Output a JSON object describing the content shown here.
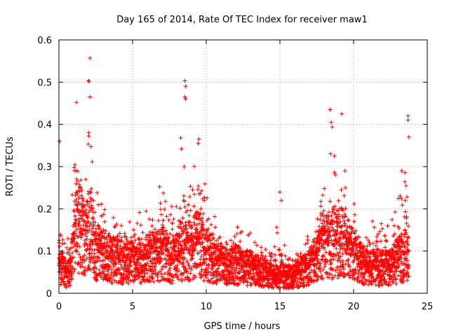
{
  "chart_data": {
    "type": "scatter",
    "title": "Day 165 of 2014, Rate Of TEC Index for receiver maw1",
    "xlabel": "GPS time / hours",
    "ylabel": "ROTI / TECUs",
    "xlim": [
      0,
      25
    ],
    "ylim": [
      0,
      0.6
    ],
    "xticks": [
      0,
      5,
      10,
      15,
      20,
      25
    ],
    "xtick_labels": [
      "0",
      "5",
      "10",
      "15",
      "20",
      "25"
    ],
    "yticks": [
      0,
      0.1,
      0.2,
      0.3,
      0.4,
      0.5,
      0.6
    ],
    "ytick_labels": [
      "0",
      "0.1",
      "0.2",
      "0.3",
      "0.4",
      "0.5",
      "0.6"
    ],
    "grid": true,
    "legend": "none",
    "marker": "plus",
    "color": "#ff0000",
    "series": [
      {
        "profile": [
          [
            0.0,
            0.05,
            0.2
          ],
          [
            0.25,
            0.06,
            0.22
          ],
          [
            0.5,
            0.04,
            0.17
          ],
          [
            0.75,
            0.05,
            0.12
          ],
          [
            1.0,
            0.12,
            0.34
          ],
          [
            1.25,
            0.17,
            0.45
          ],
          [
            1.5,
            0.14,
            0.4
          ],
          [
            1.75,
            0.12,
            0.33
          ],
          [
            2.0,
            0.15,
            0.55
          ],
          [
            2.25,
            0.12,
            0.38
          ],
          [
            2.5,
            0.1,
            0.25
          ],
          [
            3.0,
            0.09,
            0.24
          ],
          [
            3.5,
            0.08,
            0.2
          ],
          [
            4.0,
            0.08,
            0.19
          ],
          [
            4.5,
            0.07,
            0.19
          ],
          [
            5.0,
            0.08,
            0.2
          ],
          [
            5.5,
            0.08,
            0.2
          ],
          [
            6.0,
            0.08,
            0.2
          ],
          [
            6.5,
            0.09,
            0.21
          ],
          [
            7.0,
            0.09,
            0.28
          ],
          [
            7.5,
            0.08,
            0.22
          ],
          [
            8.0,
            0.08,
            0.25
          ],
          [
            8.5,
            0.1,
            0.5
          ],
          [
            8.75,
            0.1,
            0.3
          ],
          [
            9.0,
            0.1,
            0.3
          ],
          [
            9.5,
            0.12,
            0.36
          ],
          [
            10.0,
            0.09,
            0.28
          ],
          [
            10.5,
            0.07,
            0.2
          ],
          [
            11.0,
            0.07,
            0.18
          ],
          [
            11.5,
            0.06,
            0.18
          ],
          [
            12.0,
            0.07,
            0.2
          ],
          [
            12.5,
            0.06,
            0.17
          ],
          [
            13.0,
            0.06,
            0.15
          ],
          [
            13.5,
            0.05,
            0.15
          ],
          [
            14.0,
            0.05,
            0.14
          ],
          [
            14.5,
            0.04,
            0.12
          ],
          [
            15.0,
            0.04,
            0.24
          ],
          [
            15.5,
            0.04,
            0.1
          ],
          [
            16.0,
            0.04,
            0.1
          ],
          [
            16.5,
            0.05,
            0.14
          ],
          [
            17.0,
            0.06,
            0.15
          ],
          [
            17.5,
            0.09,
            0.2
          ],
          [
            18.0,
            0.12,
            0.34
          ],
          [
            18.5,
            0.11,
            0.43
          ],
          [
            19.0,
            0.12,
            0.35
          ],
          [
            19.25,
            0.12,
            0.42
          ],
          [
            19.5,
            0.11,
            0.3
          ],
          [
            19.75,
            0.1,
            0.31
          ],
          [
            20.0,
            0.09,
            0.24
          ],
          [
            20.5,
            0.07,
            0.18
          ],
          [
            21.0,
            0.06,
            0.18
          ],
          [
            21.5,
            0.06,
            0.17
          ],
          [
            22.0,
            0.06,
            0.2
          ],
          [
            22.5,
            0.06,
            0.23
          ],
          [
            23.0,
            0.08,
            0.3
          ],
          [
            23.5,
            0.09,
            0.42
          ],
          [
            23.75,
            0.08,
            0.36
          ]
        ],
        "outliers": [
          [
            2.1,
            0.557
          ],
          [
            2.0,
            0.503
          ],
          [
            2.05,
            0.502
          ],
          [
            2.1,
            0.465
          ],
          [
            1.2,
            0.452
          ],
          [
            8.55,
            0.503
          ],
          [
            8.6,
            0.49
          ],
          [
            8.55,
            0.465
          ],
          [
            8.6,
            0.46
          ],
          [
            18.4,
            0.435
          ],
          [
            19.2,
            0.425
          ],
          [
            23.7,
            0.42
          ],
          [
            23.7,
            0.41
          ],
          [
            23.75,
            0.37
          ],
          [
            15.0,
            0.24
          ],
          [
            15.1,
            0.22
          ],
          [
            0.05,
            0.36
          ],
          [
            9.5,
            0.365
          ],
          [
            9.45,
            0.355
          ]
        ]
      }
    ]
  }
}
